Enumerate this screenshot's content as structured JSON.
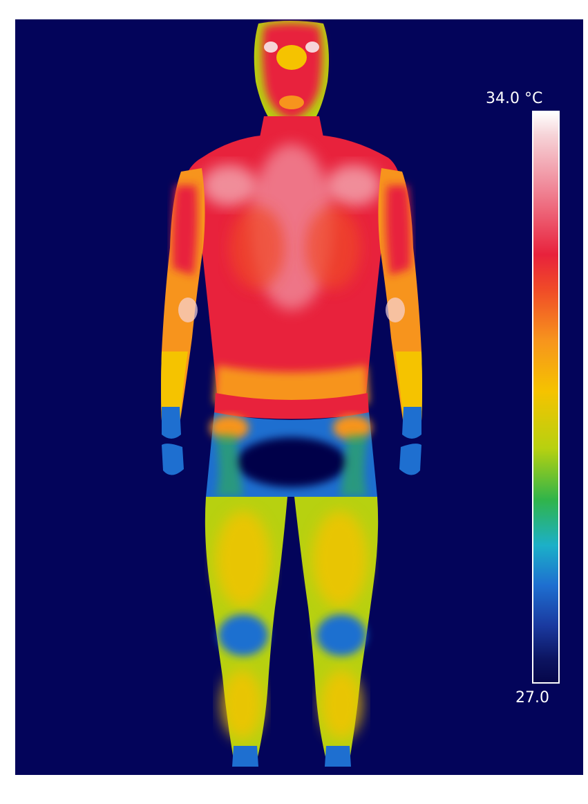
{
  "scale": {
    "max_label": "34.0 °C",
    "min_label": "27.0"
  },
  "colors": {
    "background": "#03045a",
    "hot": "#e8223c",
    "warm": "#f5c300",
    "cool": "#1e6fd0"
  }
}
